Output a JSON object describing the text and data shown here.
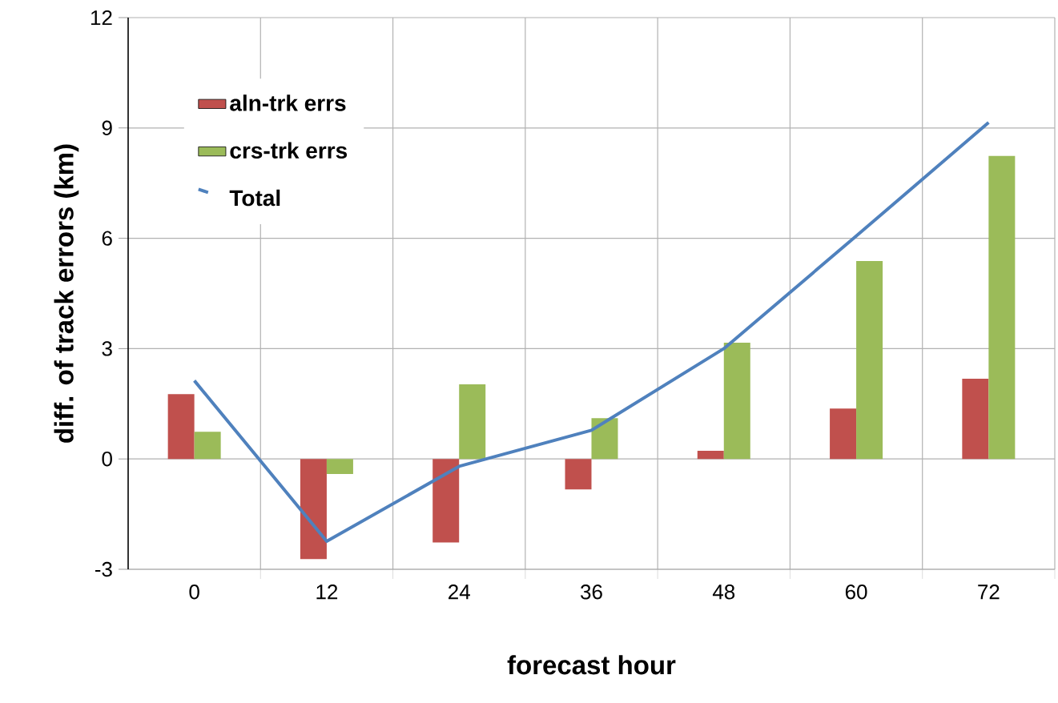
{
  "chart_data": {
    "type": "bar",
    "xlabel": "forecast hour",
    "ylabel": "diff. of track errors (km)",
    "categories": [
      "0",
      "12",
      "24",
      "36",
      "48",
      "60",
      "72"
    ],
    "series": [
      {
        "name": "aln-trk errs",
        "color": "#c0504d",
        "values": [
          1.76,
          -2.72,
          -2.27,
          -0.83,
          0.22,
          1.37,
          2.18
        ]
      },
      {
        "name": "crs-trk errs",
        "color": "#9bbb59",
        "values": [
          0.74,
          -0.41,
          2.03,
          1.11,
          3.16,
          5.38,
          8.24
        ]
      },
      {
        "name": "Total",
        "type": "line",
        "color": "#4f81bd",
        "values": [
          2.13,
          -2.24,
          -0.2,
          0.78,
          3.0,
          6.06,
          9.15
        ]
      }
    ],
    "ylim": [
      -3,
      12
    ],
    "yticks": [
      -3,
      0,
      3,
      6,
      9,
      12
    ],
    "grid": true,
    "legend": "top left"
  }
}
